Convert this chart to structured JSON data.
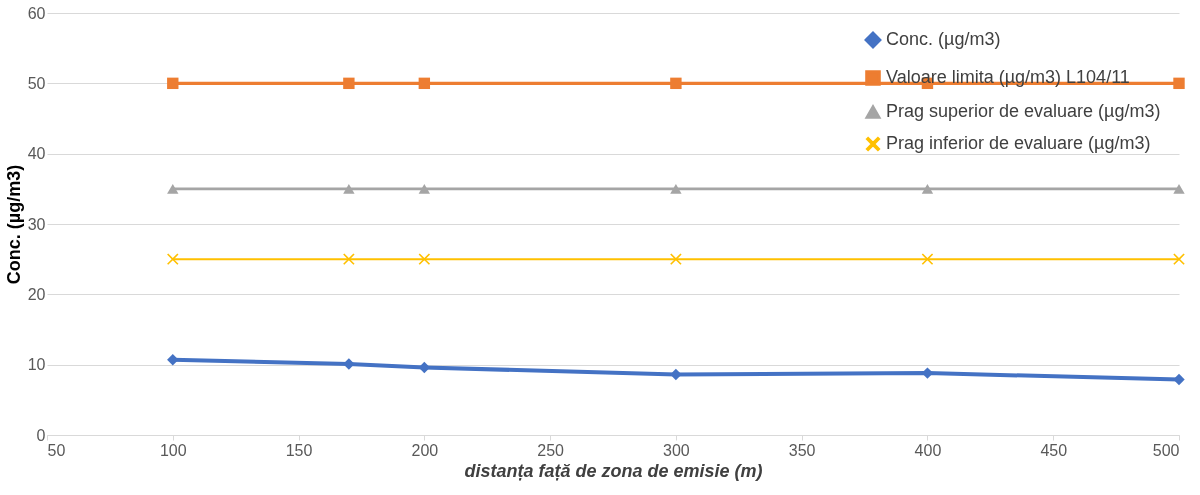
{
  "chart_data": {
    "type": "line",
    "xlabel": "distanța față de zona de emisie (m)",
    "ylabel": "Conc. (µg/m3)",
    "x": [
      100,
      170,
      200,
      300,
      400,
      500
    ],
    "series": [
      {
        "name": "Conc. (µg/m3)",
        "color": "#4472c4",
        "marker": "diamond",
        "values": [
          10.7,
          10.1,
          9.6,
          8.6,
          8.8,
          7.9
        ]
      },
      {
        "name": "Valoare limita (µg/m3) L104/11",
        "color": "#ed7d31",
        "marker": "square",
        "values": [
          50,
          50,
          50,
          50,
          50,
          50
        ]
      },
      {
        "name": "Prag superior de evaluare (µg/m3)",
        "color": "#a5a5a5",
        "marker": "triangle",
        "values": [
          35,
          35,
          35,
          35,
          35,
          35
        ]
      },
      {
        "name": "Prag inferior de evaluare (µg/m3)",
        "color": "#ffc000",
        "marker": "cross",
        "values": [
          25,
          25,
          25,
          25,
          25,
          25
        ]
      }
    ],
    "xlim": [
      50,
      500
    ],
    "xticks": [
      50,
      100,
      150,
      200,
      250,
      300,
      350,
      400,
      450,
      500
    ],
    "ylim": [
      0,
      60
    ],
    "yticks": [
      0,
      10,
      20,
      30,
      40,
      50,
      60
    ],
    "grid": "y",
    "legend": "top right",
    "line_style": "solid"
  }
}
